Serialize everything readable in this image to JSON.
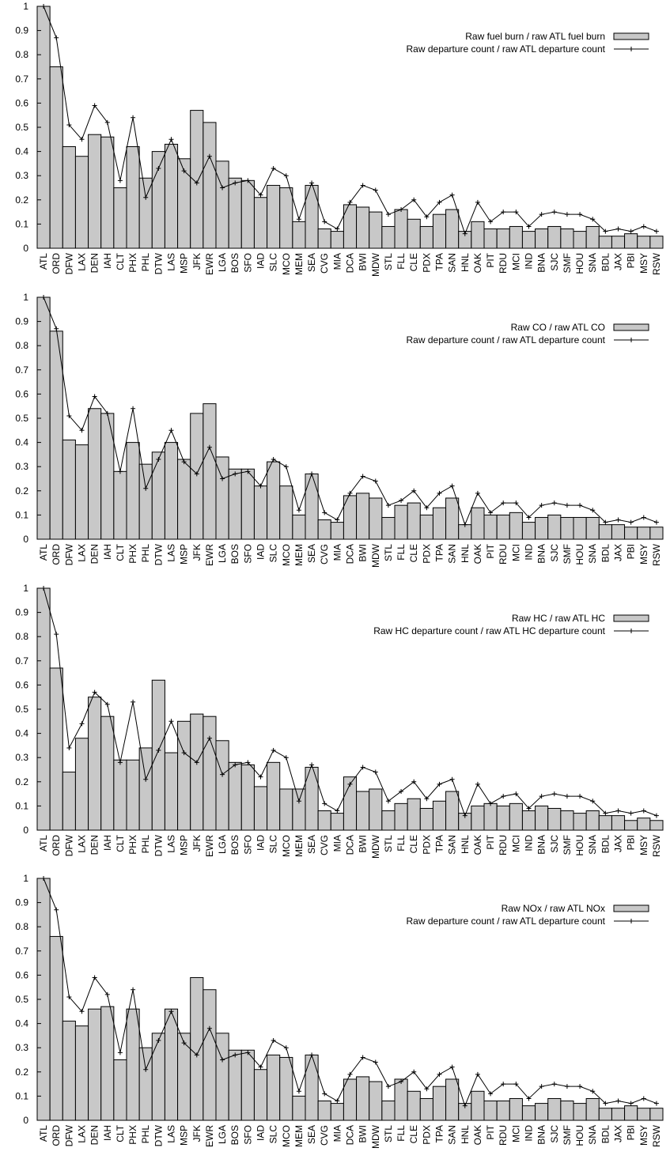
{
  "chart_data": [
    {
      "type": "bar",
      "categories": [
        "ATL",
        "ORD",
        "DFW",
        "LAX",
        "DEN",
        "IAH",
        "CLT",
        "PHX",
        "PHL",
        "DTW",
        "LAS",
        "MSP",
        "JFK",
        "EWR",
        "LGA",
        "BOS",
        "SFO",
        "IAD",
        "SLC",
        "MCO",
        "MEM",
        "SEA",
        "CVG",
        "MIA",
        "DCA",
        "BWI",
        "MDW",
        "STL",
        "FLL",
        "CLE",
        "PDX",
        "TPA",
        "SAN",
        "HNL",
        "OAK",
        "PIT",
        "RDU",
        "MCI",
        "IND",
        "BNA",
        "SJC",
        "SMF",
        "HOU",
        "SNA",
        "BDL",
        "JAX",
        "PBI",
        "MSY",
        "RSW"
      ],
      "series": [
        {
          "name": "Raw fuel burn / raw ATL fuel burn",
          "kind": "bar",
          "values": [
            1.0,
            0.75,
            0.42,
            0.38,
            0.47,
            0.46,
            0.25,
            0.42,
            0.29,
            0.4,
            0.43,
            0.37,
            0.57,
            0.52,
            0.36,
            0.29,
            0.28,
            0.21,
            0.26,
            0.25,
            0.11,
            0.26,
            0.08,
            0.07,
            0.18,
            0.17,
            0.15,
            0.09,
            0.16,
            0.12,
            0.09,
            0.14,
            0.16,
            0.07,
            0.11,
            0.08,
            0.08,
            0.09,
            0.07,
            0.08,
            0.09,
            0.08,
            0.07,
            0.09,
            0.05,
            0.05,
            0.06,
            0.05,
            0.05
          ]
        },
        {
          "name": "Raw departure count / raw ATL departure count",
          "kind": "line",
          "values": [
            1.0,
            0.87,
            0.51,
            0.45,
            0.59,
            0.52,
            0.28,
            0.54,
            0.21,
            0.33,
            0.45,
            0.32,
            0.27,
            0.38,
            0.25,
            0.27,
            0.28,
            0.22,
            0.33,
            0.3,
            0.12,
            0.27,
            0.11,
            0.08,
            0.19,
            0.26,
            0.24,
            0.14,
            0.16,
            0.2,
            0.13,
            0.19,
            0.22,
            0.06,
            0.19,
            0.11,
            0.15,
            0.15,
            0.09,
            0.14,
            0.15,
            0.14,
            0.14,
            0.12,
            0.07,
            0.08,
            0.07,
            0.09,
            0.07
          ]
        }
      ],
      "ylim": [
        0,
        1
      ],
      "yticks": [
        "0",
        "0.1",
        "0.2",
        "0.3",
        "0.4",
        "0.5",
        "0.6",
        "0.7",
        "0.8",
        "0.9",
        "1"
      ],
      "legend": "top-right",
      "grid": false
    },
    {
      "type": "bar",
      "categories": [
        "ATL",
        "ORD",
        "DFW",
        "LAX",
        "DEN",
        "IAH",
        "CLT",
        "PHX",
        "PHL",
        "DTW",
        "LAS",
        "MSP",
        "JFK",
        "EWR",
        "LGA",
        "BOS",
        "SFO",
        "IAD",
        "SLC",
        "MCO",
        "MEM",
        "SEA",
        "CVG",
        "MIA",
        "DCA",
        "BWI",
        "MDW",
        "STL",
        "FLL",
        "CLE",
        "PDX",
        "TPA",
        "SAN",
        "HNL",
        "OAK",
        "PIT",
        "RDU",
        "MCI",
        "IND",
        "BNA",
        "SJC",
        "SMF",
        "HOU",
        "SNA",
        "BDL",
        "JAX",
        "PBI",
        "MSY",
        "RSW"
      ],
      "series": [
        {
          "name": "Raw CO / raw ATL CO",
          "kind": "bar",
          "values": [
            1.0,
            0.86,
            0.41,
            0.39,
            0.54,
            0.52,
            0.28,
            0.4,
            0.31,
            0.36,
            0.4,
            0.33,
            0.52,
            0.56,
            0.34,
            0.29,
            0.29,
            0.22,
            0.32,
            0.22,
            0.1,
            0.27,
            0.08,
            0.07,
            0.18,
            0.19,
            0.17,
            0.09,
            0.14,
            0.15,
            0.1,
            0.13,
            0.17,
            0.06,
            0.13,
            0.1,
            0.1,
            0.11,
            0.07,
            0.09,
            0.1,
            0.09,
            0.09,
            0.09,
            0.06,
            0.06,
            0.05,
            0.05,
            0.05
          ]
        },
        {
          "name": "Raw departure count / raw ATL departure count",
          "kind": "line",
          "values": [
            1.0,
            0.87,
            0.51,
            0.45,
            0.59,
            0.52,
            0.28,
            0.54,
            0.21,
            0.33,
            0.45,
            0.32,
            0.27,
            0.38,
            0.25,
            0.27,
            0.28,
            0.22,
            0.33,
            0.3,
            0.12,
            0.27,
            0.11,
            0.08,
            0.19,
            0.26,
            0.24,
            0.14,
            0.16,
            0.2,
            0.13,
            0.19,
            0.22,
            0.06,
            0.19,
            0.11,
            0.15,
            0.15,
            0.09,
            0.14,
            0.15,
            0.14,
            0.14,
            0.12,
            0.07,
            0.08,
            0.07,
            0.09,
            0.07
          ]
        }
      ],
      "ylim": [
        0,
        1
      ],
      "yticks": [
        "0",
        "0.1",
        "0.2",
        "0.3",
        "0.4",
        "0.5",
        "0.6",
        "0.7",
        "0.8",
        "0.9",
        "1"
      ],
      "legend": "top-right",
      "grid": false
    },
    {
      "type": "bar",
      "categories": [
        "ATL",
        "ORD",
        "DFW",
        "LAX",
        "DEN",
        "IAH",
        "CLT",
        "PHX",
        "PHL",
        "DTW",
        "LAS",
        "MSP",
        "JFK",
        "EWR",
        "LGA",
        "BOS",
        "SFO",
        "IAD",
        "SLC",
        "MCO",
        "MEM",
        "SEA",
        "CVG",
        "MIA",
        "DCA",
        "BWI",
        "MDW",
        "STL",
        "FLL",
        "CLE",
        "PDX",
        "TPA",
        "SAN",
        "HNL",
        "OAK",
        "PIT",
        "RDU",
        "MCI",
        "IND",
        "BNA",
        "SJC",
        "SMF",
        "HOU",
        "SNA",
        "BDL",
        "JAX",
        "PBI",
        "MSY",
        "RSW"
      ],
      "series": [
        {
          "name": "Raw HC / raw ATL HC",
          "kind": "bar",
          "values": [
            1.0,
            0.67,
            0.24,
            0.38,
            0.55,
            0.47,
            0.29,
            0.29,
            0.34,
            0.62,
            0.32,
            0.45,
            0.48,
            0.47,
            0.37,
            0.28,
            0.27,
            0.18,
            0.28,
            0.17,
            0.17,
            0.26,
            0.08,
            0.07,
            0.22,
            0.16,
            0.17,
            0.08,
            0.11,
            0.13,
            0.09,
            0.12,
            0.16,
            0.07,
            0.1,
            0.11,
            0.1,
            0.11,
            0.08,
            0.1,
            0.09,
            0.08,
            0.07,
            0.08,
            0.06,
            0.06,
            0.04,
            0.05,
            0.04
          ]
        },
        {
          "name": "Raw HC departure count / raw ATL HC departure count",
          "kind": "line",
          "values": [
            1.0,
            0.81,
            0.34,
            0.44,
            0.57,
            0.52,
            0.28,
            0.53,
            0.21,
            0.33,
            0.45,
            0.32,
            0.28,
            0.38,
            0.23,
            0.27,
            0.28,
            0.22,
            0.33,
            0.3,
            0.12,
            0.27,
            0.11,
            0.08,
            0.19,
            0.26,
            0.24,
            0.12,
            0.16,
            0.2,
            0.13,
            0.19,
            0.21,
            0.06,
            0.19,
            0.11,
            0.14,
            0.15,
            0.09,
            0.14,
            0.15,
            0.14,
            0.14,
            0.12,
            0.07,
            0.08,
            0.07,
            0.08,
            0.06
          ]
        }
      ],
      "ylim": [
        0,
        1
      ],
      "yticks": [
        "0",
        "0.1",
        "0.2",
        "0.3",
        "0.4",
        "0.5",
        "0.6",
        "0.7",
        "0.8",
        "0.9",
        "1"
      ],
      "legend": "top-right",
      "grid": false
    },
    {
      "type": "bar",
      "categories": [
        "ATL",
        "ORD",
        "DFW",
        "LAX",
        "DEN",
        "IAH",
        "CLT",
        "PHX",
        "PHL",
        "DTW",
        "LAS",
        "MSP",
        "JFK",
        "EWR",
        "LGA",
        "BOS",
        "SFO",
        "IAD",
        "SLC",
        "MCO",
        "MEM",
        "SEA",
        "CVG",
        "MIA",
        "DCA",
        "BWI",
        "MDW",
        "STL",
        "FLL",
        "CLE",
        "PDX",
        "TPA",
        "SAN",
        "HNL",
        "OAK",
        "PIT",
        "RDU",
        "MCI",
        "IND",
        "BNA",
        "SJC",
        "SMF",
        "HOU",
        "SNA",
        "BDL",
        "JAX",
        "PBI",
        "MSY",
        "RSW"
      ],
      "series": [
        {
          "name": "Raw NOx / raw ATL NOx",
          "kind": "bar",
          "values": [
            1.0,
            0.76,
            0.41,
            0.39,
            0.46,
            0.47,
            0.25,
            0.46,
            0.3,
            0.36,
            0.46,
            0.36,
            0.59,
            0.54,
            0.36,
            0.29,
            0.29,
            0.21,
            0.27,
            0.26,
            0.1,
            0.27,
            0.08,
            0.07,
            0.17,
            0.18,
            0.16,
            0.08,
            0.17,
            0.12,
            0.09,
            0.14,
            0.17,
            0.07,
            0.12,
            0.08,
            0.08,
            0.09,
            0.06,
            0.07,
            0.09,
            0.08,
            0.07,
            0.09,
            0.05,
            0.05,
            0.06,
            0.05,
            0.05
          ]
        },
        {
          "name": "Raw departure count / raw ATL departure count",
          "kind": "line",
          "values": [
            1.0,
            0.87,
            0.51,
            0.45,
            0.59,
            0.52,
            0.28,
            0.54,
            0.21,
            0.33,
            0.45,
            0.32,
            0.27,
            0.38,
            0.25,
            0.27,
            0.28,
            0.22,
            0.33,
            0.3,
            0.12,
            0.27,
            0.11,
            0.08,
            0.19,
            0.26,
            0.24,
            0.14,
            0.16,
            0.2,
            0.13,
            0.19,
            0.22,
            0.06,
            0.19,
            0.11,
            0.15,
            0.15,
            0.09,
            0.14,
            0.15,
            0.14,
            0.14,
            0.12,
            0.07,
            0.08,
            0.07,
            0.09,
            0.07
          ]
        }
      ],
      "ylim": [
        0,
        1
      ],
      "yticks": [
        "0",
        "0.1",
        "0.2",
        "0.3",
        "0.4",
        "0.5",
        "0.6",
        "0.7",
        "0.8",
        "0.9",
        "1"
      ],
      "legend": "top-right",
      "grid": false
    }
  ],
  "colors": {
    "bar_fill": "#c8c8c8",
    "bar_stroke": "#000000",
    "line": "#000000",
    "axis": "#000000"
  }
}
